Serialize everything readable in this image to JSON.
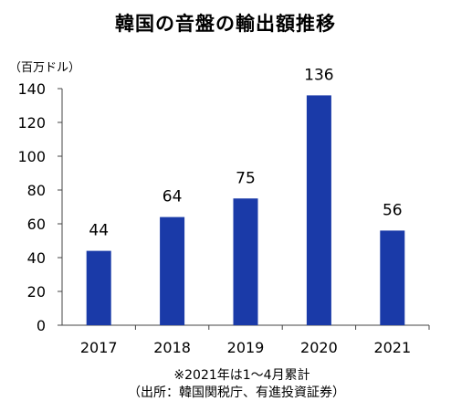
{
  "title": "韓国の音盤の輸出額推移",
  "unit_label": "（百万ドル）",
  "chart_data": {
    "type": "bar",
    "categories": [
      "2017",
      "2018",
      "2019",
      "2020",
      "2021"
    ],
    "values": [
      44,
      64,
      75,
      136,
      56
    ],
    "data_labels": [
      "44",
      "64",
      "75",
      "136",
      "56"
    ],
    "ylim": [
      0,
      140
    ],
    "yticks": [
      0,
      20,
      40,
      60,
      80,
      100,
      120,
      140
    ],
    "grid": false,
    "bar_color": "#1a3aa8"
  },
  "notes": {
    "line1": "※2021年は1〜4月累計",
    "line2": "（出所：韓国関税庁、有進投資証券）"
  }
}
